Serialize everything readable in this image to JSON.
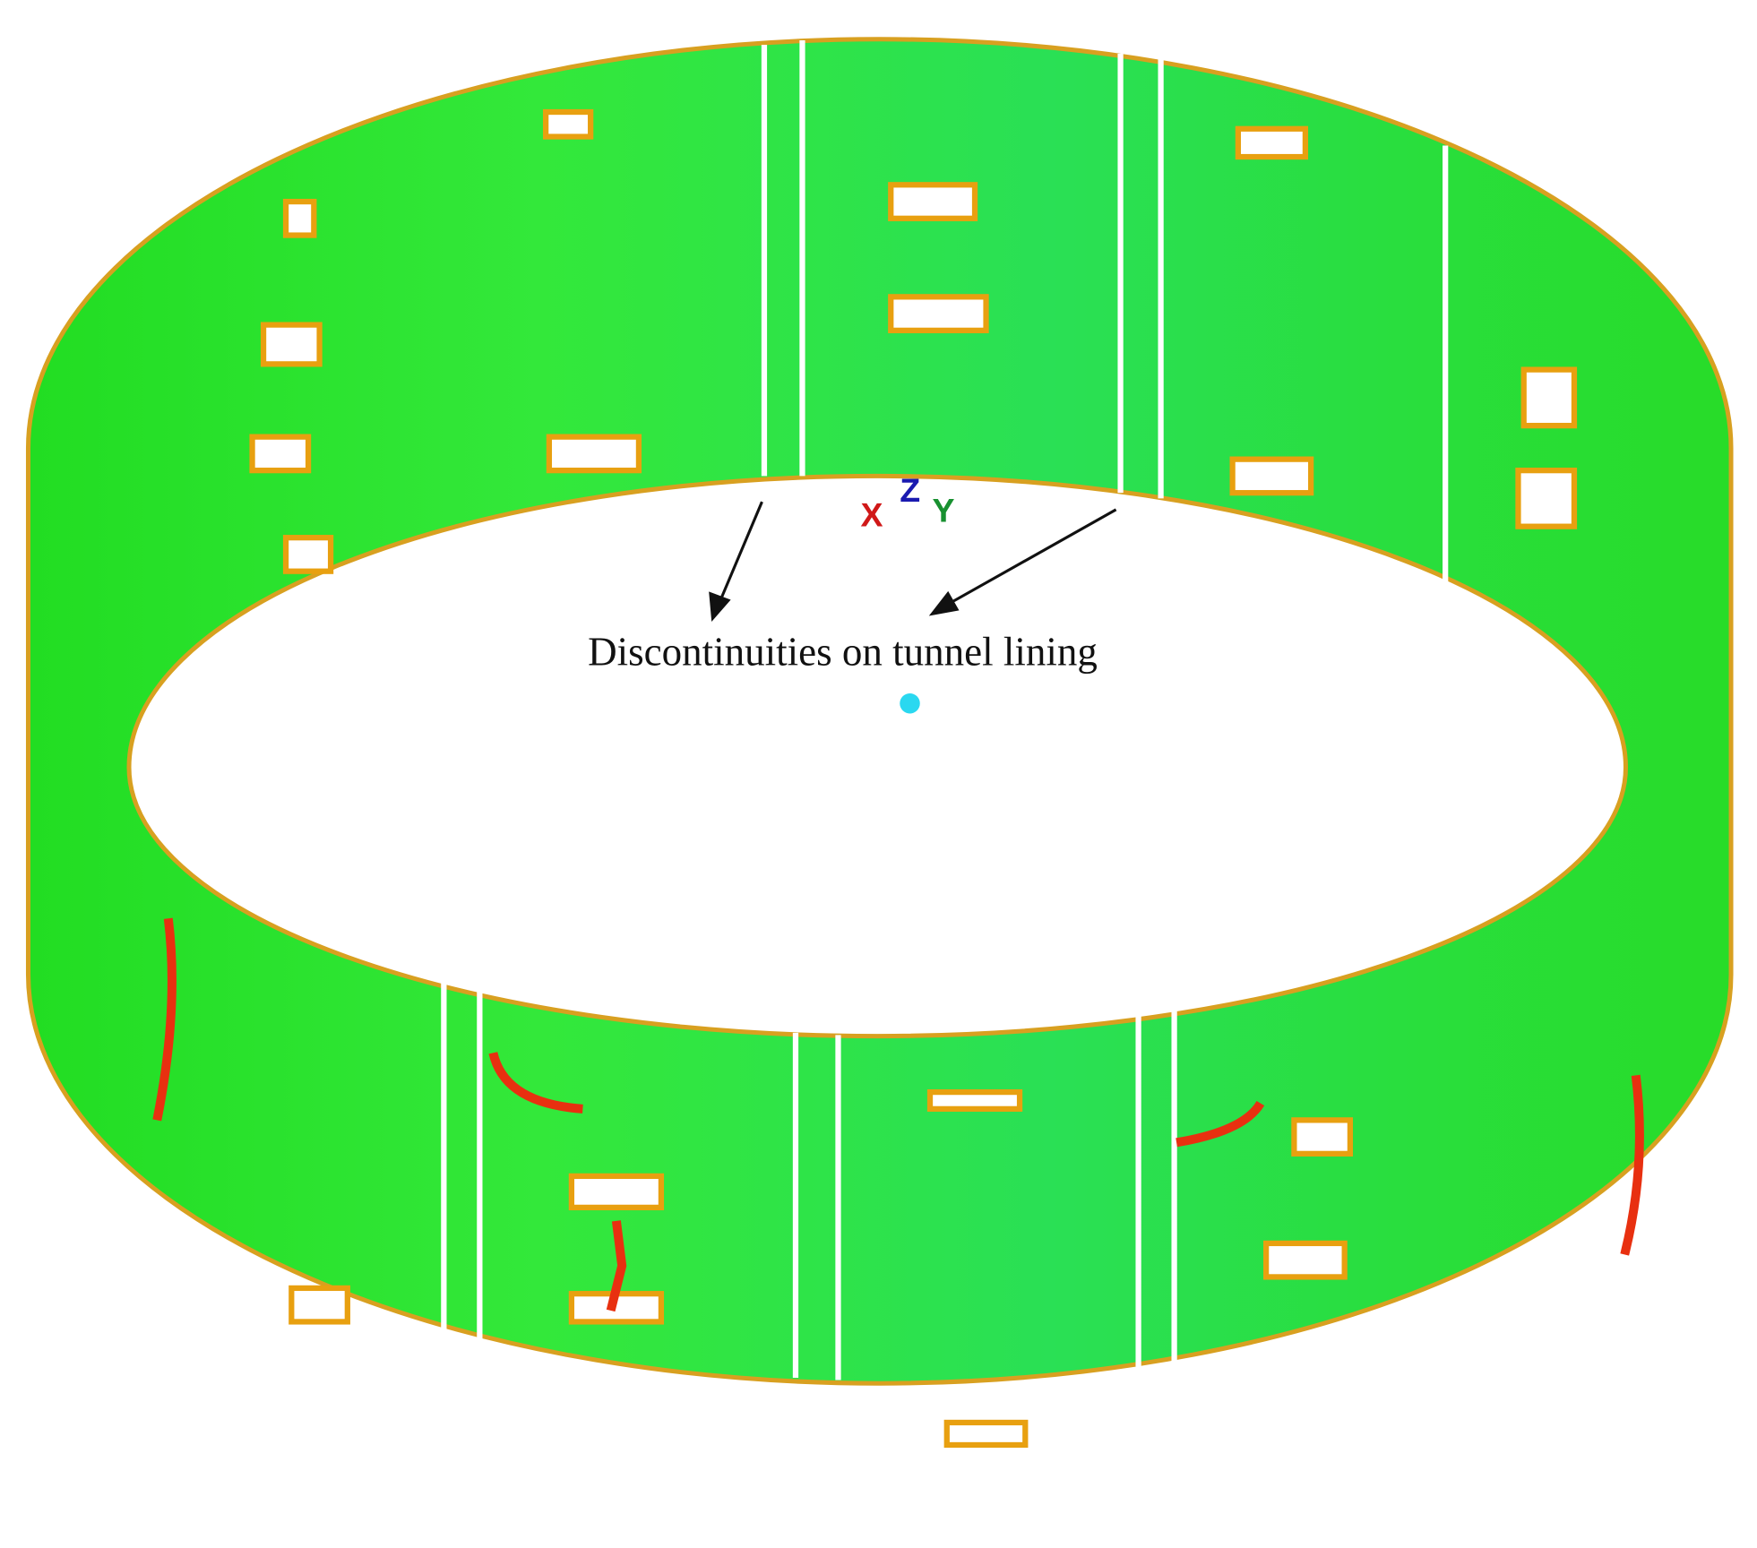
{
  "annotation": {
    "text": "Discontinuities on tunnel lining"
  },
  "axes": {
    "x": "X",
    "y": "Y",
    "z": "Z"
  }
}
